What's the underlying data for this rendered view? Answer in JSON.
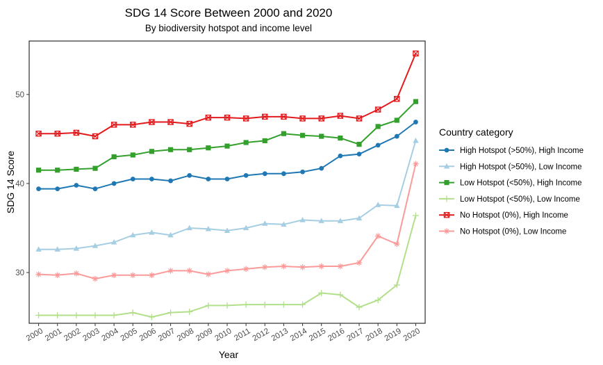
{
  "chart_data": {
    "type": "line",
    "title": "SDG 14 Score Between 2000 and 2020",
    "subtitle": "By biodiversity hotspot and income level",
    "xlabel": "Year",
    "ylabel": "SDG 14 Score",
    "x": [
      2000,
      2001,
      2002,
      2003,
      2004,
      2005,
      2006,
      2007,
      2008,
      2009,
      2010,
      2011,
      2012,
      2013,
      2014,
      2015,
      2016,
      2017,
      2018,
      2019,
      2020
    ],
    "x_tick_labels": [
      "2000",
      "2001",
      "2002",
      "2003",
      "2004",
      "2005",
      "2006",
      "2007",
      "2008",
      "2009",
      "2010",
      "2011",
      "2012",
      "2013",
      "2014",
      "2015",
      "2016",
      "2017",
      "2018",
      "2019",
      "2020"
    ],
    "xlim": [
      1999.5,
      2020.5
    ],
    "ylim": [
      24.3,
      56.0
    ],
    "y_ticks": [
      30,
      40,
      50
    ],
    "y_tick_labels": [
      "30",
      "40",
      "50"
    ],
    "grid": false,
    "legend_title": "Country category",
    "legend_position": "right",
    "series": [
      {
        "name": "High Hotspot (>50%), High Income",
        "color": "#1f78b4",
        "marker": "circle",
        "values": [
          39.4,
          39.4,
          39.8,
          39.4,
          40.0,
          40.5,
          40.5,
          40.3,
          40.9,
          40.5,
          40.5,
          40.9,
          41.1,
          41.1,
          41.3,
          41.7,
          43.1,
          43.3,
          44.3,
          45.3,
          46.9
        ]
      },
      {
        "name": "High Hotspot (>50%), Low Income",
        "color": "#a6cee3",
        "marker": "triangle",
        "values": [
          32.6,
          32.6,
          32.7,
          33.0,
          33.4,
          34.2,
          34.5,
          34.2,
          35.0,
          34.9,
          34.7,
          35.0,
          35.5,
          35.4,
          35.9,
          35.8,
          35.8,
          36.1,
          37.6,
          37.5,
          44.8
        ]
      },
      {
        "name": "Low Hotspot (<50%), High Income",
        "color": "#33a02c",
        "marker": "square",
        "values": [
          41.5,
          41.5,
          41.6,
          41.7,
          43.0,
          43.2,
          43.6,
          43.8,
          43.8,
          44.0,
          44.2,
          44.6,
          44.8,
          45.6,
          45.4,
          45.3,
          45.1,
          44.4,
          46.4,
          47.1,
          49.2
        ]
      },
      {
        "name": "Low Hotspot (<50%), Low Income",
        "color": "#b2df8a",
        "marker": "plus",
        "values": [
          25.2,
          25.2,
          25.2,
          25.2,
          25.2,
          25.5,
          25.0,
          25.5,
          25.6,
          26.3,
          26.3,
          26.4,
          26.4,
          26.4,
          26.4,
          27.7,
          27.5,
          26.1,
          26.9,
          28.6,
          36.4
        ]
      },
      {
        "name": "No Hotspot (0%), High Income",
        "color": "#e31a1c",
        "marker": "square-cross",
        "values": [
          45.6,
          45.6,
          45.7,
          45.3,
          46.6,
          46.6,
          46.9,
          46.9,
          46.7,
          47.4,
          47.4,
          47.3,
          47.5,
          47.5,
          47.3,
          47.3,
          47.6,
          47.3,
          48.3,
          49.5,
          54.6
        ]
      },
      {
        "name": "No Hotspot (0%), Low Income",
        "color": "#fb9a99",
        "marker": "asterisk",
        "values": [
          29.8,
          29.7,
          29.9,
          29.3,
          29.7,
          29.7,
          29.7,
          30.2,
          30.2,
          29.8,
          30.2,
          30.4,
          30.6,
          30.7,
          30.6,
          30.7,
          30.7,
          31.1,
          34.1,
          33.2,
          42.2
        ]
      }
    ]
  }
}
